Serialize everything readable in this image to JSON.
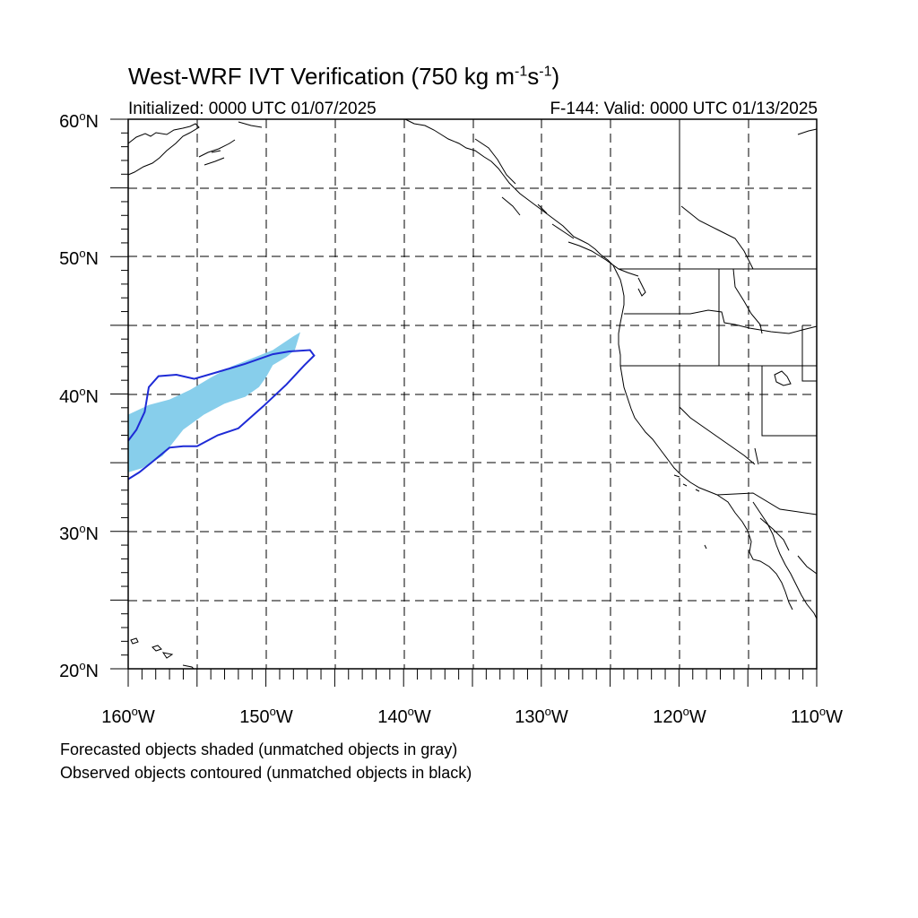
{
  "title": {
    "main": "West-WRF IVT Verification (750 kg m",
    "sup1": "-1",
    "mid": "s",
    "sup2": "-1",
    "end": ")"
  },
  "subtitle_left": "Initialized: 0000 UTC 01/07/2025",
  "subtitle_right": "F-144: Valid: 0000 UTC 01/13/2025",
  "lat_labels": [
    "60",
    "50",
    "40",
    "30",
    "20"
  ],
  "lat_suffix": "N",
  "lon_labels": [
    "160",
    "150",
    "140",
    "130",
    "120",
    "110"
  ],
  "lon_suffix": "W",
  "notes": [
    "Forecasted objects shaded (unmatched objects in gray)",
    "Observed objects contoured (unmatched objects in black)"
  ],
  "map_extent": {
    "lon_min": -160,
    "lon_max": -110,
    "lat_min": 20,
    "lat_max": 60
  },
  "colors": {
    "forecast_fill": "#87CEEB",
    "observed_contour": "#1E2BD6",
    "coastline": "#000000",
    "grid": "#000000"
  },
  "forecast_object": {
    "label": "Forecasted object (matched)",
    "points": [
      [
        -160,
        38.5
      ],
      [
        -158.5,
        39.2
      ],
      [
        -157,
        39.6
      ],
      [
        -155.5,
        40.3
      ],
      [
        -154,
        41.2
      ],
      [
        -152.5,
        42
      ],
      [
        -151,
        42.6
      ],
      [
        -149.5,
        43.2
      ],
      [
        -148,
        44.2
      ],
      [
        -147.5,
        44.5
      ],
      [
        -147.9,
        43.2
      ],
      [
        -148.5,
        42.7
      ],
      [
        -149.5,
        42.1
      ],
      [
        -150,
        41.2
      ],
      [
        -150.5,
        40.5
      ],
      [
        -151.5,
        39.8
      ],
      [
        -153,
        39.3
      ],
      [
        -154.5,
        38.5
      ],
      [
        -156,
        37.4
      ],
      [
        -157.5,
        35.5
      ],
      [
        -159,
        34.6
      ],
      [
        -160,
        34.3
      ]
    ]
  },
  "observed_object": {
    "label": "Observed object (matched)",
    "points": [
      [
        -160,
        36.6
      ],
      [
        -159.4,
        37.4
      ],
      [
        -158.8,
        38.7
      ],
      [
        -158.5,
        40.5
      ],
      [
        -157.8,
        41.3
      ],
      [
        -156.5,
        41.4
      ],
      [
        -155.2,
        41.1
      ],
      [
        -153.5,
        41.6
      ],
      [
        -151.5,
        42.2
      ],
      [
        -149.5,
        42.9
      ],
      [
        -148.3,
        43.1
      ],
      [
        -146.8,
        43.2
      ],
      [
        -146.5,
        42.8
      ],
      [
        -147.2,
        42.1
      ],
      [
        -148.5,
        40.7
      ],
      [
        -150.2,
        39.1
      ],
      [
        -152,
        37.5
      ],
      [
        -153.5,
        37
      ],
      [
        -155,
        36.2
      ],
      [
        -156,
        36.2
      ],
      [
        -157,
        36.1
      ],
      [
        -158.2,
        35.1
      ],
      [
        -159.2,
        34.3
      ],
      [
        -160,
        33.8
      ]
    ]
  }
}
